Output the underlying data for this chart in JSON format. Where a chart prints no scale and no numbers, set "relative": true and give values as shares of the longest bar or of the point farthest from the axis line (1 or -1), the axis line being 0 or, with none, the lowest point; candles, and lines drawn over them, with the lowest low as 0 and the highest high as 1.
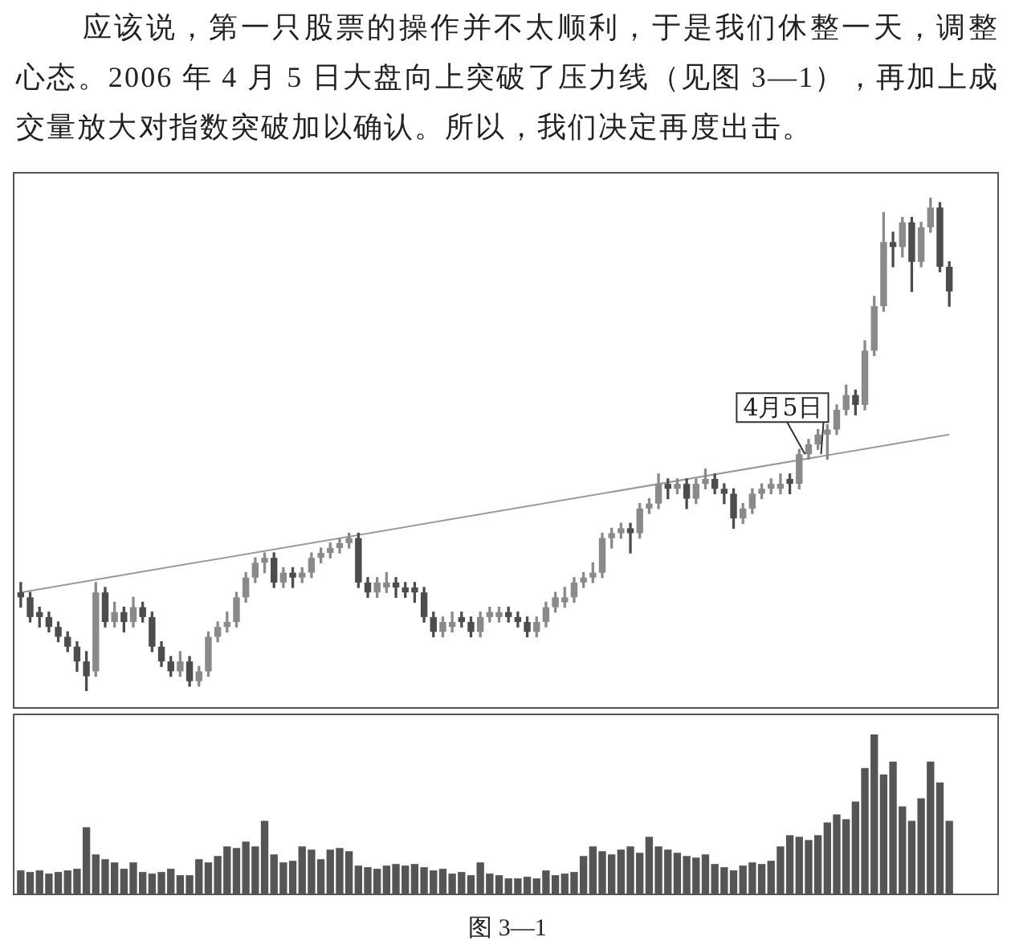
{
  "chart_data": [
    {
      "type": "candlestick",
      "relative": true,
      "colors": [
        "#4d4d4d",
        "#4d4d4d",
        "#4d4d4d",
        "#4d4d4d",
        "#4d4d4d",
        "#4d4d4d",
        "#4d4d4d",
        "#4d4d4d",
        "#8a8a8a",
        "#4d4d4d",
        "#8a8a8a",
        "#4d4d4d",
        "#8a8a8a",
        "#4d4d4d",
        "#4d4d4d",
        "#4d4d4d",
        "#4d4d4d",
        "#8a8a8a",
        "#4d4d4d",
        "#8a8a8a",
        "#8a8a8a",
        "#8a8a8a",
        "#8a8a8a",
        "#8a8a8a",
        "#8a8a8a",
        "#8a8a8a",
        "#8a8a8a",
        "#4d4d4d",
        "#8a8a8a",
        "#4d4d4d",
        "#8a8a8a",
        "#8a8a8a",
        "#8a8a8a",
        "#8a8a8a",
        "#8a8a8a",
        "#8a8a8a",
        "#4d4d4d",
        "#4d4d4d",
        "#8a8a8a",
        "#8a8a8a",
        "#4d4d4d",
        "#4d4d4d",
        "#4d4d4d",
        "#4d4d4d",
        "#4d4d4d",
        "#8a8a8a",
        "#8a8a8a",
        "#4d4d4d",
        "#4d4d4d",
        "#8a8a8a",
        "#8a8a8a",
        "#8a8a8a",
        "#4d4d4d",
        "#4d4d4d",
        "#4d4d4d",
        "#8a8a8a",
        "#8a8a8a",
        "#8a8a8a",
        "#8a8a8a",
        "#8a8a8a",
        "#8a8a8a",
        "#8a8a8a",
        "#8a8a8a",
        "#8a8a8a",
        "#8a8a8a",
        "#4d4d4d",
        "#8a8a8a",
        "#8a8a8a",
        "#8a8a8a",
        "#4d4d4d",
        "#8a8a8a",
        "#4d4d4d",
        "#8a8a8a",
        "#8a8a8a",
        "#4d4d4d",
        "#4d4d4d",
        "#4d4d4d",
        "#8a8a8a",
        "#8a8a8a",
        "#8a8a8a",
        "#8a8a8a",
        "#8a8a8a",
        "#4d4d4d",
        "#8a8a8a",
        "#8a8a8a",
        "#8a8a8a",
        "#8a8a8a",
        "#8a8a8a",
        "#8a8a8a",
        "#4d4d4d",
        "#8a8a8a",
        "#8a8a8a",
        "#8a8a8a",
        "#4d4d4d",
        "#8a8a8a",
        "#4d4d4d",
        "#8a8a8a",
        "#8a8a8a",
        "#4d4d4d",
        "#4d4d4d"
      ],
      "annotations": [
        "应该说，第一只股票的操作并不太顺利，于是我们休整一天，调整心态。2006 年 4 月 5 日大盘向上突破了压力线（见图 3—1），再加上成交量放大对指数突破加以确认。所以，我们决定再度出击。",
        {
          "text": "4月5日",
          "y": 0.48
        }
      ],
      "categories": [
        null,
        null,
        null,
        null,
        null,
        null,
        null,
        null,
        null,
        null,
        null,
        null,
        null,
        null,
        null,
        null,
        null,
        null,
        null,
        null,
        null,
        null,
        null,
        null,
        null,
        null,
        null,
        null,
        null,
        null,
        null,
        null,
        null,
        null,
        null,
        null,
        null,
        null,
        null,
        null,
        null,
        null,
        null,
        null,
        null,
        null,
        null,
        null,
        null,
        null,
        null,
        null,
        null,
        null,
        null,
        null,
        null,
        null,
        null,
        null,
        null,
        null,
        null,
        null,
        null,
        null,
        null,
        null,
        null,
        null,
        null,
        null,
        null,
        null,
        null,
        null,
        null,
        null,
        null,
        null,
        null,
        null,
        null,
        null,
        null,
        null,
        null,
        null,
        null,
        null,
        null,
        null,
        null,
        null,
        null,
        null,
        null,
        null,
        null,
        null
      ],
      "ohlc": [
        [
          0.2,
          0.22,
          0.17,
          0.19
        ],
        [
          0.19,
          0.2,
          0.14,
          0.15
        ],
        [
          0.16,
          0.17,
          0.13,
          0.15
        ],
        [
          0.15,
          0.16,
          0.12,
          0.13
        ],
        [
          0.13,
          0.14,
          0.1,
          0.11
        ],
        [
          0.11,
          0.12,
          0.08,
          0.09
        ],
        [
          0.09,
          0.1,
          0.04,
          0.06
        ],
        [
          0.06,
          0.08,
          0.0,
          0.03
        ],
        [
          0.04,
          0.22,
          0.03,
          0.2
        ],
        [
          0.2,
          0.21,
          0.13,
          0.14
        ],
        [
          0.14,
          0.18,
          0.13,
          0.16
        ],
        [
          0.16,
          0.17,
          0.12,
          0.14
        ],
        [
          0.14,
          0.19,
          0.13,
          0.17
        ],
        [
          0.17,
          0.18,
          0.14,
          0.15
        ],
        [
          0.15,
          0.16,
          0.08,
          0.09
        ],
        [
          0.09,
          0.1,
          0.05,
          0.06
        ],
        [
          0.06,
          0.07,
          0.03,
          0.04
        ],
        [
          0.04,
          0.08,
          0.03,
          0.06
        ],
        [
          0.06,
          0.07,
          0.01,
          0.02
        ],
        [
          0.02,
          0.05,
          0.01,
          0.04
        ],
        [
          0.04,
          0.12,
          0.03,
          0.11
        ],
        [
          0.11,
          0.14,
          0.1,
          0.13
        ],
        [
          0.13,
          0.16,
          0.12,
          0.14
        ],
        [
          0.14,
          0.2,
          0.13,
          0.19
        ],
        [
          0.19,
          0.24,
          0.18,
          0.23
        ],
        [
          0.23,
          0.27,
          0.22,
          0.26
        ],
        [
          0.26,
          0.28,
          0.24,
          0.27
        ],
        [
          0.27,
          0.28,
          0.21,
          0.22
        ],
        [
          0.22,
          0.25,
          0.21,
          0.24
        ],
        [
          0.24,
          0.25,
          0.21,
          0.23
        ],
        [
          0.23,
          0.25,
          0.22,
          0.24
        ],
        [
          0.24,
          0.28,
          0.23,
          0.27
        ],
        [
          0.27,
          0.29,
          0.26,
          0.28
        ],
        [
          0.28,
          0.3,
          0.27,
          0.29
        ],
        [
          0.29,
          0.31,
          0.28,
          0.3
        ],
        [
          0.3,
          0.32,
          0.29,
          0.31
        ],
        [
          0.31,
          0.32,
          0.21,
          0.22
        ],
        [
          0.22,
          0.23,
          0.19,
          0.2
        ],
        [
          0.2,
          0.23,
          0.19,
          0.22
        ],
        [
          0.21,
          0.24,
          0.2,
          0.22
        ],
        [
          0.22,
          0.23,
          0.19,
          0.21
        ],
        [
          0.21,
          0.22,
          0.19,
          0.2
        ],
        [
          0.21,
          0.22,
          0.18,
          0.2
        ],
        [
          0.2,
          0.21,
          0.14,
          0.15
        ],
        [
          0.15,
          0.16,
          0.11,
          0.12
        ],
        [
          0.12,
          0.15,
          0.11,
          0.14
        ],
        [
          0.13,
          0.16,
          0.12,
          0.14
        ],
        [
          0.15,
          0.16,
          0.13,
          0.14
        ],
        [
          0.14,
          0.15,
          0.11,
          0.12
        ],
        [
          0.12,
          0.16,
          0.11,
          0.15
        ],
        [
          0.15,
          0.17,
          0.14,
          0.16
        ],
        [
          0.15,
          0.17,
          0.14,
          0.16
        ],
        [
          0.16,
          0.17,
          0.14,
          0.15
        ],
        [
          0.15,
          0.16,
          0.13,
          0.14
        ],
        [
          0.14,
          0.15,
          0.11,
          0.12
        ],
        [
          0.12,
          0.15,
          0.11,
          0.14
        ],
        [
          0.14,
          0.18,
          0.13,
          0.17
        ],
        [
          0.17,
          0.2,
          0.16,
          0.19
        ],
        [
          0.18,
          0.21,
          0.17,
          0.19
        ],
        [
          0.19,
          0.23,
          0.18,
          0.22
        ],
        [
          0.22,
          0.24,
          0.21,
          0.23
        ],
        [
          0.23,
          0.26,
          0.22,
          0.24
        ],
        [
          0.24,
          0.32,
          0.23,
          0.31
        ],
        [
          0.31,
          0.33,
          0.29,
          0.32
        ],
        [
          0.32,
          0.34,
          0.31,
          0.33
        ],
        [
          0.33,
          0.34,
          0.28,
          0.32
        ],
        [
          0.32,
          0.38,
          0.31,
          0.37
        ],
        [
          0.37,
          0.39,
          0.36,
          0.38
        ],
        [
          0.38,
          0.44,
          0.37,
          0.42
        ],
        [
          0.42,
          0.43,
          0.39,
          0.41
        ],
        [
          0.41,
          0.43,
          0.4,
          0.42
        ],
        [
          0.42,
          0.43,
          0.37,
          0.39
        ],
        [
          0.39,
          0.43,
          0.38,
          0.42
        ],
        [
          0.42,
          0.45,
          0.41,
          0.43
        ],
        [
          0.43,
          0.44,
          0.4,
          0.41
        ],
        [
          0.41,
          0.42,
          0.38,
          0.4
        ],
        [
          0.4,
          0.41,
          0.33,
          0.35
        ],
        [
          0.35,
          0.38,
          0.34,
          0.37
        ],
        [
          0.37,
          0.41,
          0.36,
          0.4
        ],
        [
          0.4,
          0.42,
          0.39,
          0.41
        ],
        [
          0.41,
          0.43,
          0.4,
          0.42
        ],
        [
          0.41,
          0.44,
          0.4,
          0.42
        ],
        [
          0.43,
          0.44,
          0.4,
          0.42
        ],
        [
          0.42,
          0.49,
          0.41,
          0.48
        ],
        [
          0.48,
          0.51,
          0.47,
          0.5
        ],
        [
          0.5,
          0.53,
          0.49,
          0.52
        ],
        [
          0.52,
          0.54,
          0.47,
          0.53
        ],
        [
          0.53,
          0.58,
          0.52,
          0.57
        ],
        [
          0.57,
          0.62,
          0.56,
          0.6
        ],
        [
          0.6,
          0.61,
          0.56,
          0.58
        ],
        [
          0.58,
          0.71,
          0.57,
          0.69
        ],
        [
          0.69,
          0.8,
          0.68,
          0.78
        ],
        [
          0.78,
          0.97,
          0.77,
          0.91
        ],
        [
          0.91,
          0.93,
          0.86,
          0.9
        ],
        [
          0.9,
          0.96,
          0.88,
          0.95
        ],
        [
          0.95,
          0.96,
          0.81,
          0.87
        ],
        [
          0.87,
          0.95,
          0.86,
          0.94
        ],
        [
          0.94,
          1.0,
          0.93,
          0.98
        ],
        [
          0.98,
          0.99,
          0.85,
          0.86
        ],
        [
          0.86,
          0.87,
          0.78,
          0.81
        ]
      ],
      "series": [
        {
          "type": "line",
          "color": "#9a9a9a",
          "values": [
            0.2,
            null,
            null,
            null,
            null,
            null,
            null,
            null,
            null,
            null,
            null,
            null,
            null,
            null,
            null,
            null,
            null,
            null,
            null,
            null,
            null,
            null,
            null,
            null,
            null,
            null,
            null,
            null,
            null,
            null,
            null,
            null,
            null,
            null,
            null,
            null,
            null,
            null,
            null,
            null,
            null,
            null,
            null,
            null,
            null,
            null,
            null,
            null,
            null,
            null,
            null,
            null,
            null,
            null,
            null,
            null,
            null,
            null,
            null,
            null,
            null,
            null,
            null,
            null,
            null,
            null,
            null,
            null,
            null,
            null,
            null,
            null,
            null,
            null,
            null,
            null,
            null,
            null,
            null,
            null,
            null,
            null,
            null,
            null,
            null,
            null,
            null,
            null,
            null,
            null,
            null,
            null,
            null,
            null,
            null,
            null,
            null,
            null,
            null,
            0.52
          ]
        }
      ]
    },
    {
      "type": "bar",
      "relative": true,
      "color": "#555555",
      "annotations": [
        "图 3—1"
      ],
      "categories": [
        null,
        null,
        null,
        null,
        null,
        null,
        null,
        null,
        null,
        null,
        null,
        null,
        null,
        null,
        null,
        null,
        null,
        null,
        null,
        null,
        null,
        null,
        null,
        null,
        null,
        null,
        null,
        null,
        null,
        null,
        null,
        null,
        null,
        null,
        null,
        null,
        null,
        null,
        null,
        null,
        null,
        null,
        null,
        null,
        null,
        null,
        null,
        null,
        null,
        null,
        null,
        null,
        null,
        null,
        null,
        null,
        null,
        null,
        null,
        null,
        null,
        null,
        null,
        null,
        null,
        null,
        null,
        null,
        null,
        null,
        null,
        null,
        null,
        null,
        null,
        null,
        null,
        null,
        null,
        null,
        null,
        null,
        null,
        null,
        null,
        null,
        null,
        null,
        null,
        null,
        null,
        null,
        null,
        null,
        null,
        null,
        null,
        null,
        null,
        null
      ],
      "values": [
        0.15,
        0.14,
        0.15,
        0.13,
        0.14,
        0.15,
        0.16,
        0.42,
        0.25,
        0.22,
        0.2,
        0.16,
        0.2,
        0.14,
        0.13,
        0.14,
        0.16,
        0.12,
        0.12,
        0.22,
        0.2,
        0.24,
        0.3,
        0.29,
        0.33,
        0.3,
        0.46,
        0.25,
        0.2,
        0.21,
        0.3,
        0.28,
        0.22,
        0.28,
        0.29,
        0.27,
        0.18,
        0.17,
        0.16,
        0.18,
        0.19,
        0.18,
        0.19,
        0.17,
        0.15,
        0.16,
        0.13,
        0.14,
        0.12,
        0.2,
        0.13,
        0.12,
        0.1,
        0.1,
        0.11,
        0.1,
        0.15,
        0.12,
        0.13,
        0.14,
        0.24,
        0.3,
        0.27,
        0.25,
        0.28,
        0.3,
        0.26,
        0.36,
        0.3,
        0.28,
        0.26,
        0.24,
        0.23,
        0.25,
        0.19,
        0.17,
        0.15,
        0.18,
        0.2,
        0.19,
        0.21,
        0.3,
        0.37,
        0.36,
        0.34,
        0.37,
        0.45,
        0.5,
        0.47,
        0.58,
        0.79,
        1,
        0.75,
        0.83,
        0.55,
        0.46,
        0.6,
        0.83,
        0.7,
        0.46
      ]
    }
  ]
}
